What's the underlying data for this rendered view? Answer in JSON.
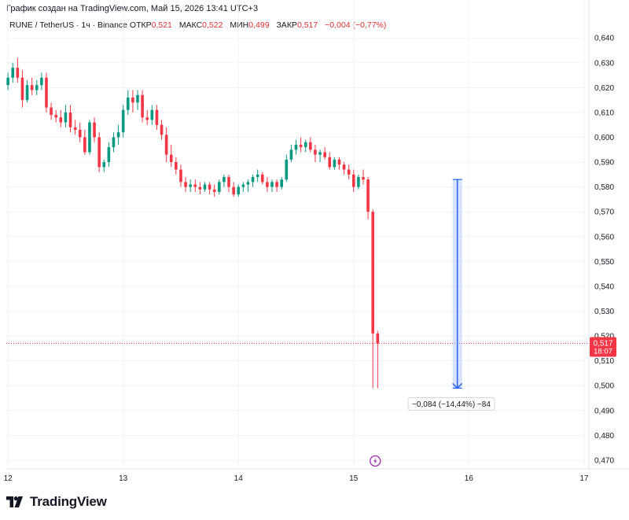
{
  "header": {
    "created_text": "График создан на TradingView.com, Май 15, 2026 13:41 UTC+3"
  },
  "legend": {
    "symbol": "RUNE / TetherUS · 1ч · Binance",
    "open_label": "ОТКР",
    "open_value": "0,521",
    "high_label": "МАКС",
    "high_value": "0,522",
    "low_label": "МИН",
    "low_value": "0,499",
    "close_label": "ЗАКР",
    "close_value": "0,517",
    "change_value": "−0,004 (−0,77%)"
  },
  "price_tag": {
    "price": "0,517",
    "countdown": "18:07",
    "color": "#f23645"
  },
  "measure": {
    "label": "−0,084 (−14,44%) −84",
    "color": "#2962ff"
  },
  "brand": {
    "name": "TradingView",
    "icon": "tradingview-logo-icon"
  },
  "flash_icon": "flash-icon",
  "chart_data": {
    "type": "candlestick",
    "up_color": "#089981",
    "down_color": "#f23645",
    "y_ticks": [
      "0,640",
      "0,630",
      "0,620",
      "0,610",
      "0,600",
      "0,590",
      "0,580",
      "0,570",
      "0,560",
      "0,550",
      "0,540",
      "0,530",
      "0,520",
      "0,510",
      "0,500",
      "0,490",
      "0,480",
      "0,470"
    ],
    "ylim": [
      0.4665,
      0.6445
    ],
    "x_ticks": [
      "12",
      "13",
      "14",
      "15",
      "16",
      "17"
    ],
    "x_tick_positions": [
      0,
      24,
      48,
      72,
      96,
      120
    ],
    "xlim": [
      -0.35,
      121
    ],
    "grid": true,
    "current_price": 0.517,
    "measure_range": {
      "x": 93.6,
      "from": 0.583,
      "to": 0.499
    },
    "candles": [
      {
        "o": 0.621,
        "h": 0.626,
        "l": 0.619,
        "c": 0.624
      },
      {
        "o": 0.624,
        "h": 0.63,
        "l": 0.622,
        "c": 0.628
      },
      {
        "o": 0.628,
        "h": 0.632,
        "l": 0.622,
        "c": 0.624
      },
      {
        "o": 0.624,
        "h": 0.627,
        "l": 0.612,
        "c": 0.615
      },
      {
        "o": 0.615,
        "h": 0.623,
        "l": 0.614,
        "c": 0.621
      },
      {
        "o": 0.621,
        "h": 0.624,
        "l": 0.617,
        "c": 0.619
      },
      {
        "o": 0.619,
        "h": 0.623,
        "l": 0.617,
        "c": 0.621
      },
      {
        "o": 0.621,
        "h": 0.626,
        "l": 0.619,
        "c": 0.624
      },
      {
        "o": 0.624,
        "h": 0.626,
        "l": 0.61,
        "c": 0.612
      },
      {
        "o": 0.612,
        "h": 0.614,
        "l": 0.607,
        "c": 0.609
      },
      {
        "o": 0.609,
        "h": 0.611,
        "l": 0.606,
        "c": 0.608
      },
      {
        "o": 0.608,
        "h": 0.611,
        "l": 0.604,
        "c": 0.606
      },
      {
        "o": 0.606,
        "h": 0.613,
        "l": 0.604,
        "c": 0.61
      },
      {
        "o": 0.61,
        "h": 0.613,
        "l": 0.602,
        "c": 0.604
      },
      {
        "o": 0.604,
        "h": 0.607,
        "l": 0.601,
        "c": 0.603
      },
      {
        "o": 0.603,
        "h": 0.606,
        "l": 0.598,
        "c": 0.6
      },
      {
        "o": 0.6,
        "h": 0.603,
        "l": 0.593,
        "c": 0.594
      },
      {
        "o": 0.594,
        "h": 0.607,
        "l": 0.593,
        "c": 0.606
      },
      {
        "o": 0.606,
        "h": 0.608,
        "l": 0.598,
        "c": 0.6
      },
      {
        "o": 0.6,
        "h": 0.602,
        "l": 0.586,
        "c": 0.588
      },
      {
        "o": 0.588,
        "h": 0.591,
        "l": 0.586,
        "c": 0.59
      },
      {
        "o": 0.59,
        "h": 0.598,
        "l": 0.588,
        "c": 0.596
      },
      {
        "o": 0.596,
        "h": 0.602,
        "l": 0.594,
        "c": 0.6
      },
      {
        "o": 0.6,
        "h": 0.605,
        "l": 0.597,
        "c": 0.602
      },
      {
        "o": 0.602,
        "h": 0.613,
        "l": 0.6,
        "c": 0.611
      },
      {
        "o": 0.611,
        "h": 0.619,
        "l": 0.609,
        "c": 0.616
      },
      {
        "o": 0.616,
        "h": 0.619,
        "l": 0.61,
        "c": 0.614
      },
      {
        "o": 0.614,
        "h": 0.619,
        "l": 0.611,
        "c": 0.617
      },
      {
        "o": 0.617,
        "h": 0.619,
        "l": 0.606,
        "c": 0.608
      },
      {
        "o": 0.608,
        "h": 0.611,
        "l": 0.605,
        "c": 0.607
      },
      {
        "o": 0.607,
        "h": 0.613,
        "l": 0.605,
        "c": 0.611
      },
      {
        "o": 0.611,
        "h": 0.613,
        "l": 0.603,
        "c": 0.605
      },
      {
        "o": 0.605,
        "h": 0.607,
        "l": 0.599,
        "c": 0.601
      },
      {
        "o": 0.601,
        "h": 0.604,
        "l": 0.59,
        "c": 0.593
      },
      {
        "o": 0.593,
        "h": 0.597,
        "l": 0.588,
        "c": 0.59
      },
      {
        "o": 0.59,
        "h": 0.592,
        "l": 0.585,
        "c": 0.587
      },
      {
        "o": 0.587,
        "h": 0.589,
        "l": 0.58,
        "c": 0.582
      },
      {
        "o": 0.582,
        "h": 0.584,
        "l": 0.578,
        "c": 0.58
      },
      {
        "o": 0.58,
        "h": 0.583,
        "l": 0.578,
        "c": 0.581
      },
      {
        "o": 0.581,
        "h": 0.583,
        "l": 0.578,
        "c": 0.58
      },
      {
        "o": 0.58,
        "h": 0.582,
        "l": 0.577,
        "c": 0.579
      },
      {
        "o": 0.579,
        "h": 0.582,
        "l": 0.578,
        "c": 0.581
      },
      {
        "o": 0.581,
        "h": 0.582,
        "l": 0.577,
        "c": 0.579
      },
      {
        "o": 0.579,
        "h": 0.581,
        "l": 0.576,
        "c": 0.578
      },
      {
        "o": 0.578,
        "h": 0.583,
        "l": 0.577,
        "c": 0.582
      },
      {
        "o": 0.582,
        "h": 0.585,
        "l": 0.58,
        "c": 0.584
      },
      {
        "o": 0.584,
        "h": 0.585,
        "l": 0.578,
        "c": 0.58
      },
      {
        "o": 0.58,
        "h": 0.582,
        "l": 0.576,
        "c": 0.577
      },
      {
        "o": 0.577,
        "h": 0.581,
        "l": 0.576,
        "c": 0.58
      },
      {
        "o": 0.58,
        "h": 0.582,
        "l": 0.578,
        "c": 0.581
      },
      {
        "o": 0.581,
        "h": 0.583,
        "l": 0.578,
        "c": 0.582
      },
      {
        "o": 0.582,
        "h": 0.585,
        "l": 0.58,
        "c": 0.584
      },
      {
        "o": 0.584,
        "h": 0.587,
        "l": 0.582,
        "c": 0.585
      },
      {
        "o": 0.585,
        "h": 0.586,
        "l": 0.581,
        "c": 0.582
      },
      {
        "o": 0.582,
        "h": 0.584,
        "l": 0.578,
        "c": 0.58
      },
      {
        "o": 0.58,
        "h": 0.583,
        "l": 0.578,
        "c": 0.582
      },
      {
        "o": 0.582,
        "h": 0.583,
        "l": 0.578,
        "c": 0.58
      },
      {
        "o": 0.58,
        "h": 0.584,
        "l": 0.579,
        "c": 0.583
      },
      {
        "o": 0.583,
        "h": 0.593,
        "l": 0.582,
        "c": 0.591
      },
      {
        "o": 0.591,
        "h": 0.597,
        "l": 0.59,
        "c": 0.595
      },
      {
        "o": 0.595,
        "h": 0.599,
        "l": 0.593,
        "c": 0.597
      },
      {
        "o": 0.597,
        "h": 0.6,
        "l": 0.594,
        "c": 0.596
      },
      {
        "o": 0.596,
        "h": 0.599,
        "l": 0.594,
        "c": 0.598
      },
      {
        "o": 0.598,
        "h": 0.6,
        "l": 0.594,
        "c": 0.595
      },
      {
        "o": 0.595,
        "h": 0.597,
        "l": 0.59,
        "c": 0.593
      },
      {
        "o": 0.593,
        "h": 0.595,
        "l": 0.59,
        "c": 0.594
      },
      {
        "o": 0.594,
        "h": 0.596,
        "l": 0.591,
        "c": 0.592
      },
      {
        "o": 0.592,
        "h": 0.594,
        "l": 0.587,
        "c": 0.588
      },
      {
        "o": 0.588,
        "h": 0.592,
        "l": 0.587,
        "c": 0.591
      },
      {
        "o": 0.591,
        "h": 0.592,
        "l": 0.587,
        "c": 0.589
      },
      {
        "o": 0.589,
        "h": 0.59,
        "l": 0.585,
        "c": 0.587
      },
      {
        "o": 0.587,
        "h": 0.589,
        "l": 0.583,
        "c": 0.585
      },
      {
        "o": 0.585,
        "h": 0.587,
        "l": 0.578,
        "c": 0.58
      },
      {
        "o": 0.58,
        "h": 0.585,
        "l": 0.579,
        "c": 0.584
      },
      {
        "o": 0.584,
        "h": 0.587,
        "l": 0.581,
        "c": 0.583
      },
      {
        "o": 0.583,
        "h": 0.584,
        "l": 0.567,
        "c": 0.57
      },
      {
        "o": 0.57,
        "h": 0.571,
        "l": 0.499,
        "c": 0.521
      },
      {
        "o": 0.521,
        "h": 0.522,
        "l": 0.499,
        "c": 0.517
      }
    ]
  }
}
